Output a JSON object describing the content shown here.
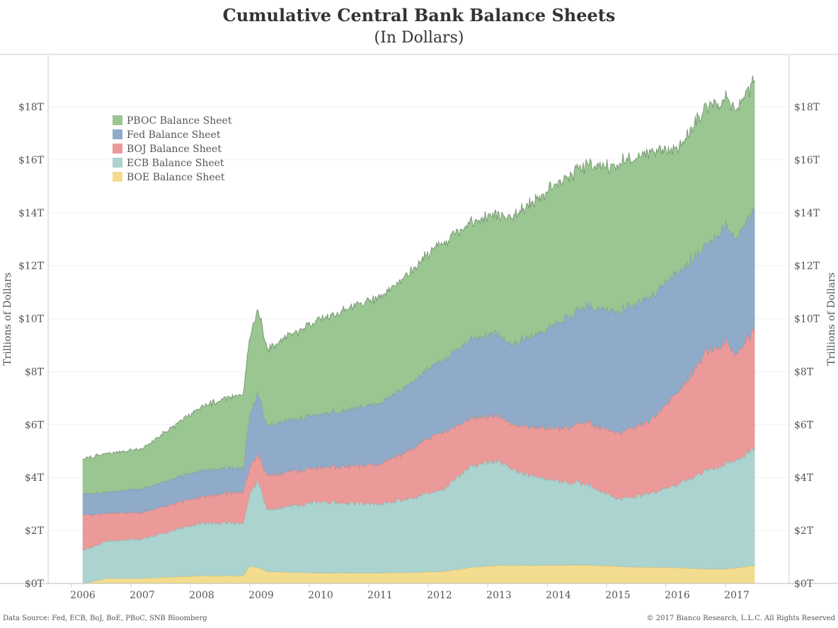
{
  "chart_data": {
    "type": "area",
    "stacked": true,
    "title": "Cumulative Central Bank Balance Sheets",
    "subtitle": "(In Dollars)",
    "ylabel": "Trillions of Dollars",
    "ylabel_right": "Trillions of Dollars",
    "ylim": [
      0,
      19.5
    ],
    "xlim": [
      2005.4,
      2017.9
    ],
    "y_ticks": [
      {
        "value": 0,
        "label": "$0T"
      },
      {
        "value": 2,
        "label": "$2T"
      },
      {
        "value": 4,
        "label": "$4T"
      },
      {
        "value": 6,
        "label": "$6T"
      },
      {
        "value": 8,
        "label": "$8T"
      },
      {
        "value": 10,
        "label": "$10T"
      },
      {
        "value": 12,
        "label": "$12T"
      },
      {
        "value": 14,
        "label": "$14T"
      },
      {
        "value": 16,
        "label": "$16T"
      },
      {
        "value": 18,
        "label": "$18T"
      }
    ],
    "x_ticks": [
      "2006",
      "2007",
      "2008",
      "2009",
      "2010",
      "2011",
      "2012",
      "2013",
      "2014",
      "2015",
      "2016",
      "2017"
    ],
    "legend_position": "top-left",
    "x": [
      2006,
      2006.4,
      2007,
      2008,
      2008.7,
      2008.8,
      2008.95,
      2009.1,
      2010,
      2011,
      2012,
      2012.5,
      2013,
      2013.2,
      2014,
      2014.5,
      2015,
      2015.5,
      2016,
      2016.5,
      2016.8,
      2017,
      2017.3
    ],
    "series": [
      {
        "name": "BOE Balance Sheet",
        "color": "#f3dc8e",
        "values": [
          0,
          0.2,
          0.2,
          0.3,
          0.3,
          0.65,
          0.6,
          0.45,
          0.4,
          0.4,
          0.45,
          0.6,
          0.7,
          0.68,
          0.7,
          0.7,
          0.65,
          0.62,
          0.6,
          0.55,
          0.55,
          0.6,
          0.68
        ]
      },
      {
        "name": "ECB Balance Sheet",
        "color": "#abd3cf",
        "values": [
          1.25,
          1.4,
          1.5,
          2.0,
          2.0,
          2.65,
          3.3,
          2.35,
          2.7,
          2.6,
          3.05,
          3.8,
          4.0,
          3.62,
          3.2,
          3.05,
          2.55,
          2.78,
          3.15,
          3.75,
          3.95,
          4.1,
          4.42
        ]
      },
      {
        "name": "BOJ Balance Sheet",
        "color": "#eb9a99",
        "values": [
          1.35,
          1.05,
          1.0,
          1.0,
          1.2,
          1.0,
          1.0,
          1.3,
          1.3,
          1.5,
          2.2,
          1.8,
          1.7,
          1.7,
          2.0,
          2.35,
          2.5,
          2.7,
          3.45,
          4.5,
          4.6,
          4.0,
          4.5
        ]
      },
      {
        "name": "Fed Balance Sheet",
        "color": "#90abc9",
        "values": [
          0.8,
          0.8,
          0.9,
          1.0,
          0.9,
          2.0,
          2.3,
          1.9,
          2.0,
          2.3,
          2.7,
          3.0,
          3.1,
          3.0,
          4.0,
          4.4,
          4.6,
          4.7,
          4.55,
          4.0,
          4.4,
          4.4,
          4.5
        ]
      },
      {
        "name": "PBOC Balance Sheet",
        "color": "#99c691",
        "values": [
          1.3,
          1.45,
          1.5,
          2.4,
          2.8,
          2.9,
          3.1,
          2.9,
          3.6,
          4.0,
          4.4,
          4.4,
          4.5,
          4.8,
          5.3,
          5.3,
          5.5,
          5.5,
          4.65,
          5.2,
          4.8,
          4.8,
          4.9
        ]
      }
    ],
    "legend_order": [
      "PBOC Balance Sheet",
      "Fed Balance Sheet",
      "BOJ Balance Sheet",
      "ECB Balance Sheet",
      "BOE Balance Sheet"
    ]
  },
  "footer": {
    "source": "Data Source: Fed, ECB, BoJ, BoE, PBoC, SNB Bloomberg",
    "copyright": "© 2017 Bianco Research, L.L.C. All Rights Reserved"
  }
}
